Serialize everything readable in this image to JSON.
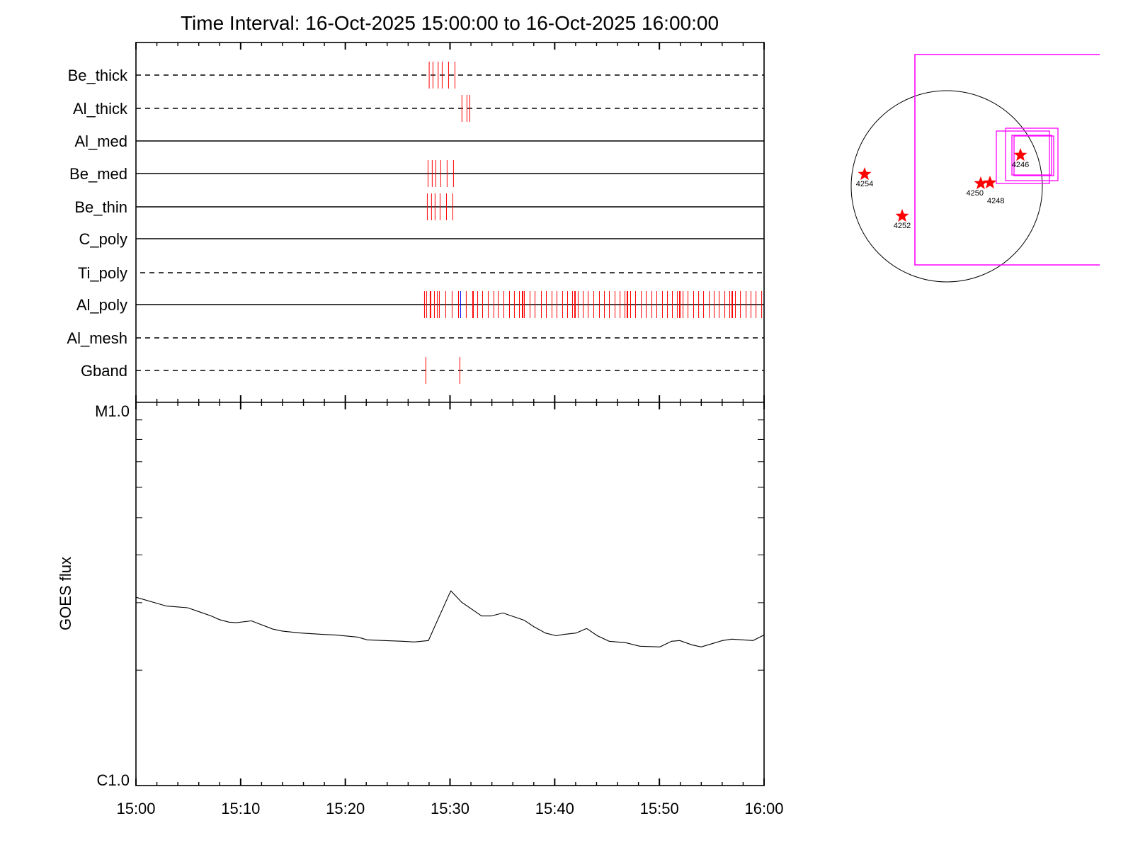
{
  "chart_data": [
    {
      "type": "scatter",
      "title": "Time Interval: 16-Oct-2025 15:00:00 to 16-Oct-2025 16:00:00",
      "x_unit": "minutes after 15:00",
      "xlim": [
        0,
        60
      ],
      "event_color": "#ff0000",
      "special_event_color": "#0000ff",
      "rows": [
        {
          "label": "Be_thick",
          "line": "dashed",
          "events": [
            28.01,
            28.37,
            28.87,
            29.25,
            29.86,
            30.47
          ]
        },
        {
          "label": "Al_thick",
          "line": "dashed",
          "events": [
            31.14,
            31.62,
            31.89
          ]
        },
        {
          "label": "Al_med",
          "line": "solid",
          "events": []
        },
        {
          "label": "Be_med",
          "line": "solid",
          "events": [
            27.9,
            28.3,
            28.64,
            29.11,
            29.72,
            30.33
          ]
        },
        {
          "label": "Be_thin",
          "line": "solid",
          "events": [
            27.83,
            28.23,
            28.57,
            29.05,
            29.66,
            30.27
          ]
        },
        {
          "label": "C_poly",
          "line": "solid",
          "events": []
        },
        {
          "label": "Ti_poly",
          "line": "dashed",
          "events": []
        },
        {
          "label": "Al_poly",
          "line": "solid",
          "special_events": [
            31.01
          ],
          "events": [
            27.56,
            27.76,
            28.1,
            28.17,
            28.51,
            28.78,
            28.98,
            29.59,
            30.2,
            30.81,
            31.55,
            32.16,
            32.23,
            32.64,
            33.11,
            33.65,
            34.19,
            34.6,
            35.14,
            35.68,
            36.15,
            36.63,
            36.9,
            36.97,
            37.1,
            37.64,
            38.12,
            38.73,
            39.2,
            39.74,
            40.21,
            40.75,
            41.23,
            41.7,
            41.91,
            41.97,
            42.24,
            42.72,
            43.19,
            43.73,
            44.27,
            44.75,
            45.22,
            45.76,
            46.24,
            46.71,
            46.91,
            46.98,
            47.25,
            47.72,
            48.27,
            48.74,
            49.28,
            49.75,
            50.29,
            50.77,
            51.24,
            51.71,
            51.92,
            51.99,
            52.26,
            52.73,
            53.27,
            53.75,
            54.22,
            54.76,
            55.23,
            55.71,
            56.25,
            56.72,
            56.93,
            56.99,
            57.26,
            57.74,
            58.28,
            58.75,
            59.23,
            59.77
          ]
        },
        {
          "label": "Al_mesh",
          "line": "dashed",
          "events": []
        },
        {
          "label": "Gband",
          "line": "dashed",
          "events": [
            27.69,
            30.94
          ]
        }
      ]
    },
    {
      "type": "line",
      "ylabel": "GOES flux",
      "yscale": "log",
      "ylim": [
        1e-06,
        1e-05
      ],
      "ytick_labels": [
        "C1.0",
        "M1.0"
      ],
      "xtick_labels": [
        "15:00",
        "15:10",
        "15:20",
        "15:30",
        "15:40",
        "15:50",
        "16:00"
      ],
      "line_color": "#000000",
      "x": [
        0,
        2.91,
        4.94,
        6.07,
        7.19,
        7.98,
        8.88,
        9.56,
        11.03,
        13.06,
        13.96,
        15.76,
        17.79,
        19.15,
        21.18,
        22.08,
        23.66,
        25.46,
        26.59,
        27.94,
        29.93,
        30.09,
        31.1,
        33.02,
        33.92,
        35.05,
        37.08,
        37.98,
        39.11,
        40.12,
        40.91,
        42.04,
        43.05,
        44.07,
        45.2,
        46.77,
        48.13,
        50.05,
        51.17,
        51.96,
        53.09,
        53.99,
        55.12,
        56.02,
        56.92,
        58.95,
        59.97
      ],
      "y": [
        3.1e-06,
        2.94e-06,
        2.91e-06,
        2.84e-06,
        2.77e-06,
        2.71e-06,
        2.67e-06,
        2.66e-06,
        2.69e-06,
        2.56e-06,
        2.53e-06,
        2.5e-06,
        2.48e-06,
        2.47e-06,
        2.44e-06,
        2.4e-06,
        2.39e-06,
        2.38e-06,
        2.37e-06,
        2.39e-06,
        3.16e-06,
        3.22e-06,
        3.01e-06,
        2.77e-06,
        2.77e-06,
        2.82e-06,
        2.7e-06,
        2.6e-06,
        2.5e-06,
        2.46e-06,
        2.48e-06,
        2.5e-06,
        2.57e-06,
        2.46e-06,
        2.38e-06,
        2.36e-06,
        2.31e-06,
        2.3e-06,
        2.38e-06,
        2.39e-06,
        2.33e-06,
        2.3e-06,
        2.35e-06,
        2.39e-06,
        2.41e-06,
        2.39e-06,
        2.47e-06
      ]
    }
  ],
  "sun_map": {
    "disk_color": "#000000",
    "box_color": "#ff00ff",
    "star_color": "#ff0000",
    "regions": [
      {
        "label": "4254"
      },
      {
        "label": "4252"
      },
      {
        "label": "4250"
      },
      {
        "label": "4248"
      },
      {
        "label": "4246"
      }
    ]
  }
}
